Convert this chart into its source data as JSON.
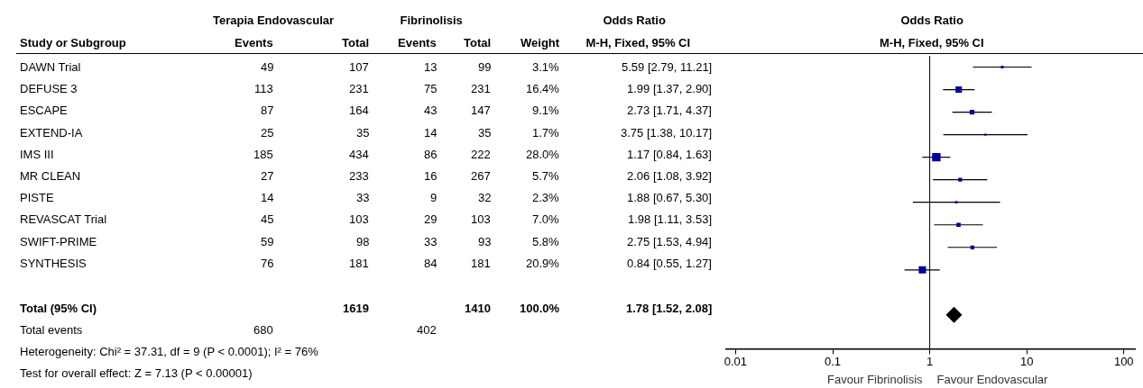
{
  "chart_data": [
    {
      "type": "other",
      "ylabel": "Study or Subgroup",
      "data_labels": true,
      "categories": [
        "DAWN Trial",
        "DEFUSE 3",
        "ESCAPE",
        "EXTEND-IA",
        "IMS III",
        "MR CLEAN",
        "PISTE",
        "REVASCAT Trial",
        "SWIFT-PRIME",
        "SYNTHESIS",
        null,
        "Total (95% CI)",
        "Total events"
      ],
      "series": [
        {
          "name": "Events",
          "values": [
            49,
            113,
            87,
            25,
            185,
            27,
            14,
            45,
            59,
            76,
            null,
            null,
            680
          ]
        },
        {
          "name": "Total",
          "values": [
            107,
            231,
            164,
            35,
            434,
            233,
            33,
            103,
            98,
            181,
            null,
            1619,
            null
          ]
        },
        {
          "name": "Events",
          "values": [
            13,
            75,
            43,
            14,
            86,
            16,
            9,
            29,
            33,
            84,
            null,
            null,
            402
          ]
        },
        {
          "name": "Total",
          "values": [
            99,
            231,
            147,
            35,
            222,
            267,
            32,
            103,
            93,
            181,
            null,
            1410,
            null
          ]
        },
        {
          "name": "Weight",
          "values": [
            3.1,
            16.4,
            9.1,
            1.7,
            28.0,
            5.7,
            2.3,
            7.0,
            5.8,
            20.9,
            null,
            100.0,
            null
          ],
          "value_labels": [
            "3.1%",
            "16.4%",
            "9.1%",
            "1.7%",
            "28.0%",
            "5.7%",
            "2.3%",
            "7.0%",
            "5.8%",
            "20.9%",
            null,
            "100.0%",
            null
          ]
        },
        {
          "name": "M-H, Fixed, 95% CI",
          "values": [
            5.59,
            1.99,
            2.73,
            3.75,
            1.17,
            2.06,
            1.88,
            1.98,
            2.75,
            0.84,
            null,
            1.78,
            null
          ],
          "value_labels": [
            "5.59 [2.79, 11.21]",
            "1.99 [1.37, 2.90]",
            "2.73 [1.71, 4.37]",
            "3.75 [1.38, 10.17]",
            "1.17 [0.84, 1.63]",
            "2.06 [1.08, 3.92]",
            "1.88 [0.67, 5.30]",
            "1.98 [1.11, 3.53]",
            "2.75 [1.53, 4.94]",
            "0.84 [0.55, 1.27]",
            null,
            "1.78 [1.52, 2.08]",
            null
          ]
        }
      ],
      "annotations": [
        "Terapia Endovascular",
        "Fibrinolisis",
        "Odds Ratio",
        "Heterogeneity: Chi² = 37.31, df = 9 (P < 0.0001); I² = 76%",
        "Test for overall effect: Z = 7.13 (P < 0.00001)"
      ]
    },
    {
      "type": "scatter",
      "orientation": "horizontal",
      "title": "Odds Ratio",
      "subtitle": "M-H, Fixed, 95% CI",
      "categories": [
        null,
        null,
        null,
        null,
        null,
        null,
        null,
        null,
        null,
        null,
        null,
        null,
        null
      ],
      "series": [
        {
          "color": "#0000a0",
          "marker": "square",
          "values": [
            5.59,
            1.99,
            2.73,
            3.75,
            1.17,
            2.06,
            1.88,
            1.98,
            2.75,
            0.84,
            null,
            null,
            null
          ],
          "errors": [
            [
              2.79,
              11.21
            ],
            [
              1.37,
              2.9
            ],
            [
              1.71,
              4.37
            ],
            [
              1.38,
              10.17
            ],
            [
              0.84,
              1.63
            ],
            [
              1.08,
              3.92
            ],
            [
              0.67,
              5.3
            ],
            [
              1.11,
              3.53
            ],
            [
              1.53,
              4.94
            ],
            [
              0.55,
              1.27
            ],
            null,
            null,
            null
          ],
          "sizes": [
            0.111,
            0.586,
            0.325,
            0.061,
            1,
            0.204,
            0.082,
            0.25,
            0.207,
            0.746,
            null,
            null,
            null
          ]
        },
        {
          "color": "#000000",
          "marker": "diamond",
          "values": [
            null,
            null,
            null,
            null,
            null,
            null,
            null,
            null,
            null,
            null,
            null,
            1.78,
            null
          ]
        }
      ],
      "log": "x",
      "xlim": [
        0.008,
        130
      ],
      "xticks": [
        0.01,
        0.1,
        1,
        10,
        100
      ],
      "ref_lines": [
        {
          "axis": "x",
          "value": 1,
          "color": "#000000"
        }
      ],
      "annotations": [
        "Favour Fibrinolisis",
        "Favour Endovascular"
      ],
      "tick_labels": "x",
      "grid": false,
      "legend": false
    }
  ]
}
